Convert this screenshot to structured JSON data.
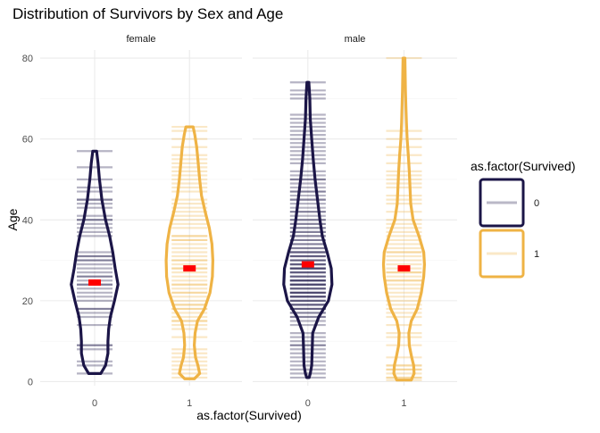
{
  "chart_data": {
    "type": "violin",
    "title": "Distribution of Survivors by Sex and Age",
    "xlabel": "as.factor(Survived)",
    "ylabel": "Age",
    "ylim": [
      -1,
      82
    ],
    "yticks": [
      0,
      20,
      40,
      60,
      80
    ],
    "categories": [
      "0",
      "1"
    ],
    "grid": true,
    "legend": {
      "title": "as.factor(Survived)",
      "position": "right",
      "entries": [
        {
          "label": "0",
          "color": "#1b1547"
        },
        {
          "label": "1",
          "color": "#efb345"
        }
      ]
    },
    "facets": [
      {
        "label": "female",
        "groups": [
          {
            "survived": "0",
            "color": "#1b1547",
            "mean": 24.5,
            "range": [
              2,
              57
            ],
            "violin": [
              [
                2,
                0.25
              ],
              [
                4,
                0.45
              ],
              [
                7,
                0.55
              ],
              [
                10,
                0.55
              ],
              [
                13,
                0.58
              ],
              [
                16,
                0.65
              ],
              [
                20,
                0.82
              ],
              [
                24,
                0.97
              ],
              [
                28,
                0.85
              ],
              [
                32,
                0.75
              ],
              [
                36,
                0.62
              ],
              [
                40,
                0.45
              ],
              [
                45,
                0.3
              ],
              [
                50,
                0.2
              ],
              [
                54,
                0.14
              ],
              [
                57,
                0.08
              ]
            ],
            "ages": [
              2,
              4,
              5,
              8,
              9,
              9,
              14,
              16,
              17,
              18,
              18,
              20,
              21,
              22,
              23,
              24,
              24,
              25,
              26,
              26,
              27,
              28,
              29,
              30,
              30,
              31,
              31,
              32,
              36,
              37,
              38,
              39,
              40,
              40,
              41,
              43,
              44,
              45,
              45,
              47,
              48,
              50,
              53,
              57
            ]
          },
          {
            "survived": "1",
            "color": "#efb345",
            "mean": 28,
            "range": [
              0.7,
              63
            ],
            "violin": [
              [
                0.7,
                0.2
              ],
              [
                2,
                0.42
              ],
              [
                4,
                0.35
              ],
              [
                6,
                0.25
              ],
              [
                9,
                0.2
              ],
              [
                12,
                0.23
              ],
              [
                15,
                0.33
              ],
              [
                18,
                0.62
              ],
              [
                22,
                0.85
              ],
              [
                26,
                0.95
              ],
              [
                30,
                0.97
              ],
              [
                34,
                0.93
              ],
              [
                38,
                0.82
              ],
              [
                42,
                0.65
              ],
              [
                46,
                0.5
              ],
              [
                50,
                0.42
              ],
              [
                54,
                0.36
              ],
              [
                58,
                0.3
              ],
              [
                61,
                0.22
              ],
              [
                63,
                0.15
              ]
            ],
            "ages": [
              1,
              2,
              3,
              4,
              5,
              6,
              7,
              8,
              11,
              13,
              14,
              15,
              15,
              16,
              17,
              18,
              18,
              19,
              19,
              20,
              21,
              22,
              22,
              23,
              24,
              24,
              25,
              26,
              27,
              28,
              28,
              29,
              30,
              30,
              31,
              32,
              33,
              34,
              35,
              35,
              36,
              36,
              38,
              39,
              40,
              41,
              42,
              43,
              44,
              45,
              47,
              48,
              49,
              50,
              51,
              52,
              53,
              54,
              55,
              56,
              58,
              60,
              62,
              63
            ]
          }
        ]
      },
      {
        "label": "male",
        "groups": [
          {
            "survived": "0",
            "color": "#1b1547",
            "mean": 29,
            "range": [
              1,
              74
            ],
            "violin": [
              [
                1,
                0.05
              ],
              [
                2,
                0.1
              ],
              [
                4,
                0.16
              ],
              [
                8,
                0.18
              ],
              [
                12,
                0.2
              ],
              [
                16,
                0.45
              ],
              [
                20,
                0.85
              ],
              [
                24,
                1.0
              ],
              [
                28,
                0.97
              ],
              [
                32,
                0.8
              ],
              [
                36,
                0.6
              ],
              [
                40,
                0.5
              ],
              [
                45,
                0.4
              ],
              [
                50,
                0.3
              ],
              [
                55,
                0.22
              ],
              [
                60,
                0.16
              ],
              [
                65,
                0.1
              ],
              [
                70,
                0.08
              ],
              [
                73,
                0.05
              ],
              [
                74,
                0.04
              ]
            ],
            "ages": [
              1,
              2,
              3,
              4,
              5,
              6,
              7,
              8,
              9,
              9,
              10,
              11,
              12,
              14,
              15,
              16,
              16,
              17,
              17,
              18,
              18,
              18,
              19,
              19,
              19,
              20,
              20,
              20,
              21,
              21,
              21,
              21,
              22,
              22,
              22,
              22,
              23,
              23,
              23,
              24,
              24,
              24,
              24,
              25,
              25,
              25,
              25,
              26,
              26,
              26,
              27,
              27,
              27,
              28,
              28,
              28,
              28,
              29,
              29,
              29,
              30,
              30,
              30,
              31,
              31,
              31,
              32,
              32,
              32,
              33,
              33,
              34,
              34,
              35,
              35,
              36,
              36,
              37,
              37,
              38,
              38,
              39,
              39,
              40,
              40,
              41,
              42,
              42,
              43,
              44,
              45,
              45,
              46,
              47,
              47,
              48,
              49,
              50,
              50,
              51,
              52,
              54,
              55,
              56,
              57,
              58,
              59,
              60,
              61,
              62,
              63,
              64,
              65,
              66,
              70,
              71,
              72,
              74
            ]
          },
          {
            "survived": "1",
            "color": "#efb345",
            "mean": 28,
            "range": [
              0.4,
              80
            ],
            "violin": [
              [
                0.4,
                0.3
              ],
              [
                2,
                0.42
              ],
              [
                4,
                0.4
              ],
              [
                6,
                0.32
              ],
              [
                9,
                0.22
              ],
              [
                12,
                0.2
              ],
              [
                15,
                0.3
              ],
              [
                18,
                0.55
              ],
              [
                22,
                0.72
              ],
              [
                26,
                0.82
              ],
              [
                29,
                0.85
              ],
              [
                32,
                0.82
              ],
              [
                36,
                0.62
              ],
              [
                40,
                0.38
              ],
              [
                44,
                0.28
              ],
              [
                48,
                0.25
              ],
              [
                52,
                0.22
              ],
              [
                56,
                0.18
              ],
              [
                60,
                0.13
              ],
              [
                64,
                0.1
              ],
              [
                68,
                0.08
              ],
              [
                72,
                0.06
              ],
              [
                76,
                0.05
              ],
              [
                80,
                0.04
              ]
            ],
            "ages": [
              0.4,
              1,
              1,
              2,
              3,
              3,
              4,
              4,
              6,
              9,
              11,
              12,
              14,
              16,
              17,
              18,
              19,
              20,
              21,
              22,
              23,
              24,
              25,
              25,
              26,
              27,
              27,
              28,
              29,
              30,
              31,
              32,
              32,
              33,
              34,
              35,
              36,
              37,
              38,
              39,
              40,
              42,
              44,
              45,
              46,
              48,
              49,
              50,
              51,
              52,
              54,
              56,
              58,
              60,
              62,
              80
            ]
          }
        ]
      }
    ]
  }
}
